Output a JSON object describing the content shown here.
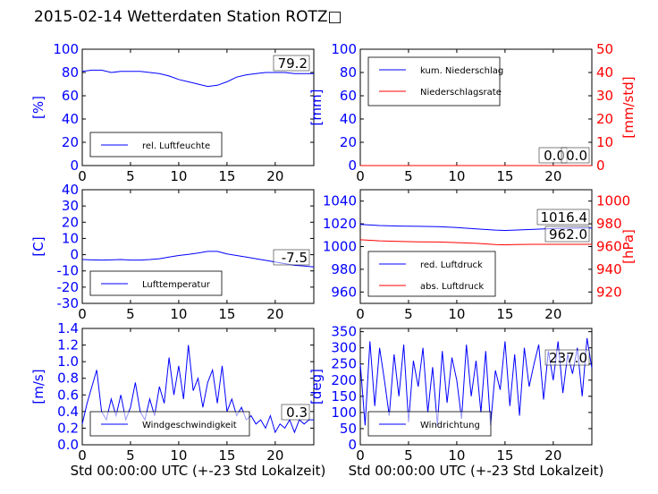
{
  "figure": {
    "title": "2015-02-14 Wetterdaten Station ROTZ□"
  },
  "colors": {
    "primary": "#0000ff",
    "secondary": "#ff0000",
    "text": "#000000"
  },
  "chart_data": [
    {
      "id": "humidity",
      "type": "line",
      "xlabel": "",
      "ylabel": "[%]",
      "xlim": [
        0,
        24
      ],
      "ylim": [
        0,
        100
      ],
      "xticks": [
        "0",
        "5",
        "10",
        "15",
        "20"
      ],
      "yticks": [
        "0",
        "20",
        "40",
        "60",
        "80",
        "100"
      ],
      "legend_position": "lower-left",
      "series": [
        {
          "name": "rel. Luftfeuchte",
          "color": "#0000ff",
          "x": [
            0,
            1,
            2,
            3,
            4,
            5,
            6,
            7,
            8,
            9,
            10,
            11,
            12,
            13,
            14,
            15,
            16,
            17,
            18,
            19,
            20,
            21,
            22,
            23,
            24
          ],
          "y": [
            81,
            82,
            82,
            80,
            81,
            81,
            81,
            80,
            79,
            77,
            74,
            72,
            70,
            68,
            69,
            72,
            76,
            78,
            79,
            80,
            80,
            80,
            79,
            79,
            79
          ]
        }
      ],
      "annotation": "79.2"
    },
    {
      "id": "precipitation",
      "type": "line",
      "xlabel": "",
      "ylabel": "[mm]",
      "ylabel_right": "[mm/std]",
      "xlim": [
        0,
        24
      ],
      "ylim": [
        0,
        100
      ],
      "ylim_right": [
        0,
        50
      ],
      "xticks": [
        "0",
        "5",
        "10",
        "15",
        "20"
      ],
      "yticks": [
        "0",
        "20",
        "40",
        "60",
        "80",
        "100"
      ],
      "yticks_right": [
        "0",
        "10",
        "20",
        "30",
        "40",
        "50"
      ],
      "legend_position": "top-left",
      "series": [
        {
          "name": "kum. Niederschlag",
          "color": "#0000ff",
          "x": [
            0,
            24
          ],
          "y": [
            0,
            0
          ]
        },
        {
          "name": "Niederschlagsrate",
          "color": "#ff0000",
          "x": [
            0,
            24
          ],
          "y": [
            0,
            0
          ]
        }
      ],
      "annotations": [
        "0.0",
        "0.0"
      ]
    },
    {
      "id": "temperature",
      "type": "line",
      "xlabel": "",
      "ylabel": "[C]",
      "xlim": [
        0,
        24
      ],
      "ylim": [
        -30,
        40
      ],
      "xticks": [
        "0",
        "5",
        "10",
        "15",
        "20"
      ],
      "yticks": [
        "-30",
        "-20",
        "-10",
        "0",
        "10",
        "20",
        "30",
        "40"
      ],
      "legend_position": "lower-left",
      "series": [
        {
          "name": "Lufttemperatur",
          "color": "#0000ff",
          "x": [
            0,
            1,
            2,
            3,
            4,
            5,
            6,
            7,
            8,
            9,
            10,
            11,
            12,
            13,
            14,
            15,
            16,
            17,
            18,
            19,
            20,
            21,
            22,
            23,
            24
          ],
          "y": [
            -3,
            -3.2,
            -3.3,
            -3.2,
            -3,
            -3.3,
            -3.3,
            -3,
            -2.5,
            -1.5,
            -0.5,
            0.2,
            1,
            2,
            2,
            0.5,
            -0.5,
            -1.5,
            -2.5,
            -3.5,
            -4.5,
            -5.5,
            -6.5,
            -7,
            -7.5
          ]
        }
      ],
      "annotation": "-7.5"
    },
    {
      "id": "pressure",
      "type": "line",
      "xlabel": "",
      "ylabel": "",
      "ylabel_right": "[hPa]",
      "xlim": [
        0,
        24
      ],
      "ylim": [
        950,
        1050
      ],
      "ylim_right": [
        910,
        1010
      ],
      "xticks": [
        "0",
        "5",
        "10",
        "15",
        "20"
      ],
      "yticks": [
        "960",
        "980",
        "1000",
        "1020",
        "1040"
      ],
      "yticks_right": [
        "920",
        "940",
        "960",
        "980",
        "1000"
      ],
      "legend_position": "lower-left",
      "series": [
        {
          "name": "red. Luftdruck",
          "color": "#0000ff",
          "x": [
            0,
            2,
            4,
            6,
            8,
            10,
            12,
            14,
            15,
            16,
            18,
            20,
            22,
            24
          ],
          "y": [
            1019.5,
            1018.5,
            1018,
            1017.8,
            1017.5,
            1016.8,
            1015.5,
            1014.5,
            1014.2,
            1014.5,
            1015.2,
            1015.8,
            1016.2,
            1016.4
          ]
        },
        {
          "name": "abs. Luftdruck",
          "color": "#ff0000",
          "x": [
            0,
            2,
            4,
            6,
            8,
            10,
            12,
            14,
            15,
            16,
            18,
            20,
            22,
            24
          ],
          "y": [
            1006,
            1005,
            1004.5,
            1004.2,
            1004,
            1003.5,
            1002.8,
            1001.8,
            1001.5,
            1001.7,
            1002,
            1002,
            1002,
            1002
          ]
        }
      ],
      "annotations": [
        "1016.4",
        "962.0"
      ]
    },
    {
      "id": "windspeed",
      "type": "line",
      "xlabel": "Std 00:00:00 UTC (+-23 Std Lokalzeit)",
      "ylabel": "[m/s]",
      "xlim": [
        0,
        24
      ],
      "ylim": [
        0,
        1.4
      ],
      "xticks": [
        "0",
        "5",
        "10",
        "15",
        "20"
      ],
      "yticks": [
        "0.0",
        "0.2",
        "0.4",
        "0.6",
        "0.8",
        "1.0",
        "1.2",
        "1.4"
      ],
      "legend_position": "lower-left",
      "series": [
        {
          "name": "Windgeschwindigkeit",
          "color": "#0000ff",
          "x": [
            0,
            0.5,
            1,
            1.5,
            2,
            2.5,
            3,
            3.5,
            4,
            4.5,
            5,
            5.5,
            6,
            6.5,
            7,
            7.5,
            8,
            8.5,
            9,
            9.5,
            10,
            10.5,
            11,
            11.5,
            12,
            12.5,
            13,
            13.5,
            14,
            14.5,
            15,
            15.5,
            16,
            16.5,
            17,
            17.5,
            18,
            18.5,
            19,
            19.5,
            20,
            20.5,
            21,
            21.5,
            22,
            22.5,
            23,
            23.5,
            24
          ],
          "y": [
            0.25,
            0.5,
            0.7,
            0.9,
            0.4,
            0.3,
            0.55,
            0.35,
            0.6,
            0.3,
            0.45,
            0.75,
            0.4,
            0.3,
            0.55,
            0.35,
            0.7,
            0.5,
            1.05,
            0.6,
            0.95,
            0.55,
            1.2,
            0.65,
            0.8,
            0.45,
            0.75,
            0.9,
            0.5,
            0.95,
            0.4,
            0.55,
            0.35,
            0.45,
            0.3,
            0.35,
            0.25,
            0.3,
            0.2,
            0.35,
            0.15,
            0.25,
            0.2,
            0.3,
            0.15,
            0.3,
            0.25,
            0.3,
            0.3
          ]
        }
      ],
      "annotation": "0.3"
    },
    {
      "id": "winddirection",
      "type": "line",
      "xlabel": "Std 00:00:00 UTC (+-23 Std Lokalzeit)",
      "ylabel": "[deg]",
      "xlim": [
        0,
        24
      ],
      "ylim": [
        0,
        360
      ],
      "xticks": [
        "0",
        "5",
        "10",
        "15",
        "20"
      ],
      "yticks": [
        "0",
        "50",
        "100",
        "150",
        "200",
        "250",
        "300",
        "350"
      ],
      "legend_position": "lower-left",
      "series": [
        {
          "name": "Windrichtung",
          "color": "#0000ff",
          "x": [
            0,
            0.5,
            1,
            1.5,
            2,
            2.5,
            3,
            3.5,
            4,
            4.5,
            5,
            5.5,
            6,
            6.5,
            7,
            7.5,
            8,
            8.5,
            9,
            9.5,
            10,
            10.5,
            11,
            11.5,
            12,
            12.5,
            13,
            13.5,
            14,
            14.5,
            15,
            15.5,
            16,
            16.5,
            17,
            17.5,
            18,
            18.5,
            19,
            19.5,
            20,
            20.5,
            21,
            21.5,
            22,
            22.5,
            23,
            23.5,
            24
          ],
          "y": [
            250,
            60,
            320,
            120,
            300,
            200,
            90,
            280,
            150,
            310,
            70,
            260,
            180,
            300,
            100,
            240,
            60,
            290,
            130,
            270,
            200,
            80,
            310,
            150,
            260,
            100,
            290,
            60,
            230,
            170,
            320,
            120,
            280,
            90,
            300,
            180,
            250,
            310,
            140,
            290,
            200,
            320,
            160,
            280,
            220,
            300,
            150,
            330,
            237
          ]
        }
      ],
      "annotation": "237.0"
    }
  ]
}
